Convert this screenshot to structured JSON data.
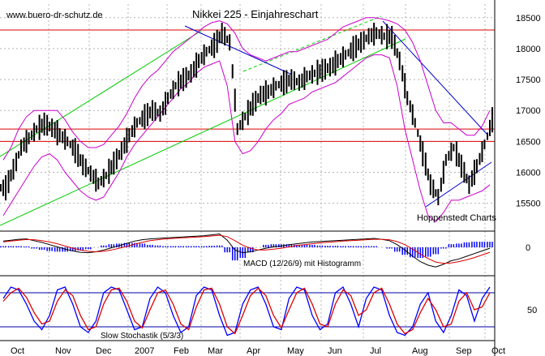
{
  "header": {
    "website": "www.buero-dr-schutz.de",
    "title": "Nikkei 225 - Einjahreschart"
  },
  "labels": {
    "source": "Hoppenstedt Charts",
    "macd": "MACD (12/26/9) mit Histogramm",
    "stochastic": "Slow Stochastik (5/3/3)"
  },
  "colors": {
    "background": "#ffffff",
    "grid": "#b4b4b4",
    "price_bars": "#000000",
    "bollinger": "#cc00cc",
    "trend_channel": "#00cc00",
    "horizontal_lines": "#dd0000",
    "trend_lines": "#0000cc",
    "macd_histogram": "#0000ff",
    "macd_line": "#000000",
    "macd_signal": "#dd0000",
    "stoch_k": "#0000ff",
    "stoch_d": "#dd0000"
  },
  "chart_data": [
    {
      "type": "bar",
      "panel": "price",
      "y_ticks": [
        15500,
        16000,
        16500,
        17000,
        17500,
        18000,
        18500
      ],
      "ylim": [
        15050,
        18720
      ],
      "x_months": [
        "Oct",
        "Nov",
        "Dec",
        "2007",
        "Feb",
        "Mar",
        "Apr",
        "May",
        "Jun",
        "Jul",
        "Aug",
        "Sep",
        "Oct"
      ],
      "weekly_close": [
        15750,
        16050,
        16400,
        16550,
        16700,
        16780,
        16720,
        16600,
        16500,
        16350,
        16120,
        15980,
        15820,
        15950,
        16150,
        16350,
        16600,
        16800,
        16900,
        17000,
        16950,
        17200,
        17400,
        17500,
        17600,
        17800,
        17950,
        18050,
        18250,
        18100,
        16700,
        16900,
        17100,
        17250,
        17300,
        17400,
        17450,
        17500,
        17450,
        17550,
        17600,
        17650,
        17700,
        17800,
        17900,
        18000,
        18100,
        18200,
        18250,
        18200,
        18180,
        17800,
        17200,
        16800,
        16300,
        15800,
        15600,
        16200,
        16400,
        16100,
        15800,
        16100,
        16450,
        16850
      ],
      "horizontal_levels": [
        18300,
        16700,
        16500
      ],
      "bollinger_upper": [
        16200,
        16400,
        16700,
        16900,
        17000,
        17000,
        17000,
        17000,
        16850,
        16650,
        16500,
        16400,
        16400,
        16450,
        16600,
        16750,
        16950,
        17200,
        17400,
        17550,
        17650,
        17800,
        17950,
        18050,
        18150,
        18250,
        18350,
        18420,
        18450,
        18400,
        18250,
        18000,
        17900,
        17850,
        17800,
        17850,
        17900,
        17950,
        17950,
        18000,
        18050,
        18100,
        18150,
        18250,
        18350,
        18400,
        18450,
        18500,
        18500,
        18480,
        18450,
        18400,
        18300,
        18100,
        17800,
        17400,
        17000,
        16800,
        16800,
        16700,
        16600,
        16600,
        16750,
        17000
      ],
      "bollinger_lower": [
        15300,
        15500,
        15700,
        15900,
        16100,
        16250,
        16300,
        16200,
        16000,
        15850,
        15700,
        15600,
        15550,
        15600,
        15800,
        16000,
        16250,
        16450,
        16600,
        16750,
        16900,
        17050,
        17200,
        17350,
        17450,
        17600,
        17700,
        17750,
        17800,
        17400,
        16500,
        16300,
        16350,
        16500,
        16700,
        16850,
        16950,
        17100,
        17150,
        17200,
        17300,
        17350,
        17400,
        17450,
        17550,
        17650,
        17750,
        17850,
        17900,
        17900,
        17850,
        17400,
        16700,
        16200,
        15700,
        15300,
        15200,
        15350,
        15550,
        15550,
        15600,
        15650,
        15700,
        15800
      ]
    },
    {
      "type": "area",
      "panel": "macd",
      "name": "MACD (12/26/9) mit Histogramm",
      "y_ticks": [
        0
      ],
      "macd": [
        140,
        160,
        180,
        190,
        150,
        110,
        60,
        10,
        -40,
        -80,
        -110,
        -120,
        -100,
        -60,
        -10,
        40,
        90,
        140,
        170,
        190,
        200,
        210,
        220,
        230,
        240,
        250,
        260,
        280,
        300,
        160,
        -60,
        -120,
        -100,
        -60,
        -20,
        10,
        30,
        60,
        80,
        100,
        120,
        130,
        140,
        150,
        160,
        170,
        180,
        190,
        200,
        180,
        150,
        60,
        -60,
        -200,
        -320,
        -400,
        -440,
        -380,
        -300,
        -260,
        -200,
        -140,
        -80,
        -20
      ],
      "signal": [
        120,
        140,
        160,
        175,
        170,
        150,
        120,
        80,
        30,
        -20,
        -60,
        -90,
        -100,
        -90,
        -60,
        -20,
        20,
        70,
        110,
        150,
        170,
        190,
        200,
        210,
        220,
        230,
        240,
        255,
        270,
        240,
        150,
        50,
        -20,
        -60,
        -60,
        -40,
        -20,
        10,
        40,
        60,
        80,
        100,
        115,
        125,
        140,
        150,
        160,
        170,
        180,
        180,
        170,
        130,
        60,
        -40,
        -150,
        -250,
        -330,
        -360,
        -350,
        -320,
        -280,
        -230,
        -170,
        -110
      ]
    },
    {
      "type": "line",
      "panel": "stochastic",
      "name": "Slow Stochastik (5/3/3)",
      "y_ticks": [
        50
      ],
      "ylim": [
        0,
        100
      ],
      "reference_levels": [
        80,
        20
      ],
      "k": [
        70,
        90,
        85,
        60,
        30,
        15,
        40,
        85,
        90,
        60,
        20,
        10,
        30,
        80,
        90,
        85,
        50,
        15,
        20,
        70,
        90,
        80,
        40,
        10,
        20,
        75,
        90,
        85,
        40,
        5,
        10,
        60,
        85,
        90,
        60,
        20,
        15,
        70,
        90,
        85,
        40,
        15,
        25,
        80,
        90,
        60,
        20,
        70,
        90,
        85,
        40,
        10,
        5,
        20,
        60,
        80,
        30,
        10,
        40,
        85,
        75,
        30,
        70,
        90
      ],
      "d": [
        65,
        80,
        88,
        72,
        45,
        25,
        30,
        65,
        85,
        75,
        40,
        15,
        20,
        60,
        85,
        88,
        65,
        30,
        18,
        50,
        80,
        85,
        60,
        25,
        15,
        55,
        85,
        88,
        60,
        20,
        8,
        40,
        75,
        88,
        75,
        40,
        18,
        50,
        80,
        88,
        60,
        25,
        20,
        60,
        85,
        75,
        40,
        50,
        80,
        88,
        60,
        25,
        8,
        15,
        45,
        70,
        50,
        20,
        25,
        65,
        80,
        50,
        55,
        80
      ]
    }
  ]
}
